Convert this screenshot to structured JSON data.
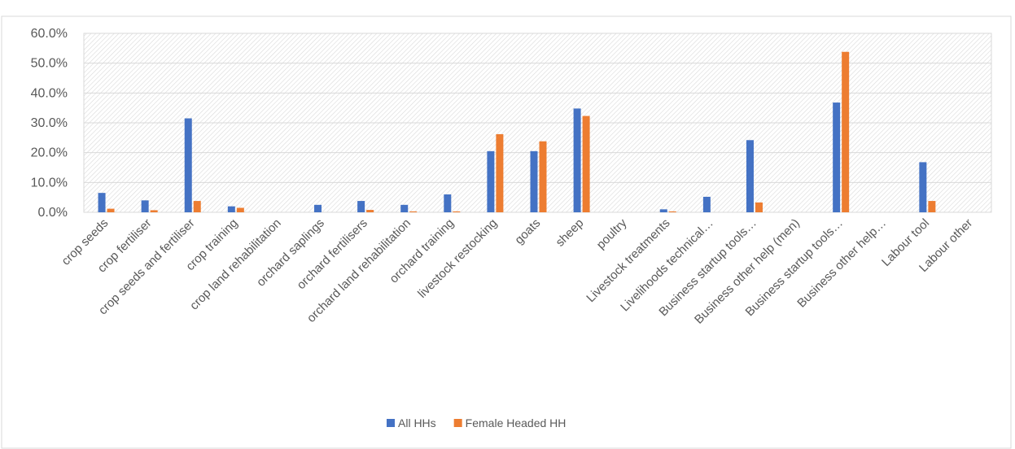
{
  "chart_data": {
    "type": "bar",
    "categories": [
      "crop seeds",
      "crop fertiliser",
      "crop seeds and fertiliser",
      "crop training",
      "crop land rehabilitation",
      "orchard saplings",
      "orchard fertilisers",
      "orchard land rehabilitation",
      "orchard training",
      "livestock restocking",
      "goats",
      "sheep",
      "poultry",
      "Livestock treatments",
      "Livelihoods technical…",
      "Business startup tools…",
      "Business other help (men)",
      "Business startup tools…",
      "Business other help…",
      "Labour tool",
      "Labour other"
    ],
    "series": [
      {
        "name": "All HHs",
        "color": "#4472c4",
        "values": [
          6.5,
          4.0,
          31.5,
          2.0,
          0,
          2.5,
          3.8,
          2.5,
          6.0,
          20.5,
          20.5,
          34.8,
          0,
          1.0,
          5.2,
          24.2,
          0,
          36.8,
          0,
          16.8,
          0
        ]
      },
      {
        "name": "Female Headed HH",
        "color": "#ed7d31",
        "values": [
          1.2,
          0.7,
          3.8,
          1.5,
          0,
          0,
          0.8,
          0.3,
          0.3,
          26.2,
          23.8,
          32.3,
          0,
          0.3,
          0,
          3.3,
          0,
          53.8,
          0,
          3.8,
          0
        ]
      }
    ],
    "ylim": [
      0,
      60
    ],
    "yticks": [
      {
        "value": 0,
        "label": "0.0%"
      },
      {
        "value": 10,
        "label": "10.0%"
      },
      {
        "value": 20,
        "label": "20.0%"
      },
      {
        "value": 30,
        "label": "30.0%"
      },
      {
        "value": 40,
        "label": "40.0%"
      },
      {
        "value": 50,
        "label": "50.0%"
      },
      {
        "value": 60,
        "label": "60.0%"
      }
    ],
    "grid": true,
    "legend": "bottom"
  }
}
